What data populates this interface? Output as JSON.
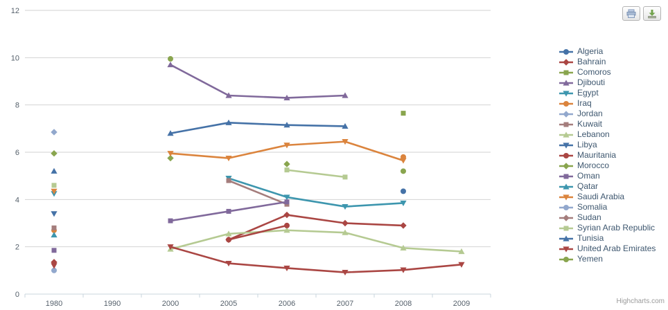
{
  "credits": "Highcharts.com",
  "toolbar": {
    "print_icon": "print-chart",
    "export_icon": "download-chart"
  },
  "chart_data": {
    "type": "line",
    "title": "",
    "xlabel": "",
    "ylabel": "",
    "categories": [
      "1980",
      "1990",
      "2000",
      "2005",
      "2006",
      "2007",
      "2008",
      "2009"
    ],
    "yaxis": {
      "min": 0,
      "max": 12,
      "tick_interval": 2,
      "ticks": [
        0,
        2,
        4,
        6,
        8,
        10,
        12
      ]
    },
    "grid": true,
    "legend_position": "right",
    "series": [
      {
        "name": "Algeria",
        "color": "#4572A7",
        "marker": "circle",
        "points": [
          [
            "2008",
            4.35
          ]
        ]
      },
      {
        "name": "Bahrain",
        "color": "#AA4643",
        "marker": "diamond",
        "points": [
          [
            "1980",
            1.35
          ],
          [
            "2005",
            2.3
          ],
          [
            "2006",
            3.35
          ],
          [
            "2007",
            3.0
          ],
          [
            "2008",
            2.9
          ]
        ]
      },
      {
        "name": "Comoros",
        "color": "#89A54E",
        "marker": "square",
        "points": [
          [
            "2008",
            7.65
          ]
        ]
      },
      {
        "name": "Djibouti",
        "color": "#80699B",
        "marker": "triangle",
        "points": [
          [
            "2000",
            9.7
          ],
          [
            "2005",
            8.4
          ],
          [
            "2006",
            8.3
          ],
          [
            "2007",
            8.4
          ]
        ]
      },
      {
        "name": "Egypt",
        "color": "#3D96AE",
        "marker": "triangle-down",
        "points": [
          [
            "1980",
            4.25
          ],
          [
            "2005",
            4.9
          ],
          [
            "2006",
            4.1
          ],
          [
            "2007",
            3.7
          ],
          [
            "2008",
            3.85
          ]
        ]
      },
      {
        "name": "Iraq",
        "color": "#DB843D",
        "marker": "circle",
        "points": [
          [
            "1980",
            2.7
          ],
          [
            "2008",
            5.8
          ]
        ]
      },
      {
        "name": "Jordan",
        "color": "#92A8CD",
        "marker": "diamond",
        "points": [
          [
            "1980",
            6.85
          ]
        ]
      },
      {
        "name": "Kuwait",
        "color": "#A47D7C",
        "marker": "square",
        "points": [
          [
            "1980",
            2.8
          ],
          [
            "2005",
            4.8
          ],
          [
            "2006",
            3.8
          ]
        ]
      },
      {
        "name": "Lebanon",
        "color": "#B5CA92",
        "marker": "triangle",
        "points": [
          [
            "2000",
            1.9
          ],
          [
            "2005",
            2.55
          ],
          [
            "2006",
            2.7
          ],
          [
            "2007",
            2.6
          ],
          [
            "2008",
            1.95
          ],
          [
            "2009",
            1.8
          ]
        ]
      },
      {
        "name": "Libya",
        "color": "#4572A7",
        "marker": "triangle-down",
        "points": [
          [
            "1980",
            3.4
          ]
        ]
      },
      {
        "name": "Mauritania",
        "color": "#AA4643",
        "marker": "circle",
        "points": [
          [
            "2005",
            2.3
          ],
          [
            "2006",
            2.9
          ]
        ]
      },
      {
        "name": "Morocco",
        "color": "#89A54E",
        "marker": "diamond",
        "points": [
          [
            "1980",
            5.95
          ],
          [
            "2000",
            5.75
          ],
          [
            "2006",
            5.5
          ]
        ]
      },
      {
        "name": "Oman",
        "color": "#80699B",
        "marker": "square",
        "points": [
          [
            "1980",
            1.85
          ],
          [
            "2000",
            3.1
          ],
          [
            "2005",
            3.5
          ],
          [
            "2006",
            3.9
          ]
        ]
      },
      {
        "name": "Qatar",
        "color": "#3D96AE",
        "marker": "triangle",
        "points": [
          [
            "1980",
            2.5
          ]
        ]
      },
      {
        "name": "Saudi Arabia",
        "color": "#DB843D",
        "marker": "triangle-down",
        "points": [
          [
            "1980",
            4.35
          ],
          [
            "2000",
            5.95
          ],
          [
            "2005",
            5.75
          ],
          [
            "2006",
            6.3
          ],
          [
            "2007",
            6.45
          ],
          [
            "2008",
            5.65
          ]
        ]
      },
      {
        "name": "Somalia",
        "color": "#92A8CD",
        "marker": "circle",
        "points": [
          [
            "1980",
            1.0
          ]
        ]
      },
      {
        "name": "Sudan",
        "color": "#A47D7C",
        "marker": "diamond",
        "points": []
      },
      {
        "name": "Syrian Arab Republic",
        "color": "#B5CA92",
        "marker": "square",
        "points": [
          [
            "1980",
            4.6
          ],
          [
            "2006",
            5.25
          ],
          [
            "2007",
            4.95
          ]
        ]
      },
      {
        "name": "Tunisia",
        "color": "#4572A7",
        "marker": "triangle",
        "points": [
          [
            "1980",
            5.2
          ],
          [
            "2000",
            6.8
          ],
          [
            "2005",
            7.25
          ],
          [
            "2006",
            7.15
          ],
          [
            "2007",
            7.1
          ]
        ]
      },
      {
        "name": "United Arab Emirates",
        "color": "#AA4643",
        "marker": "triangle-down",
        "points": [
          [
            "1980",
            1.2
          ],
          [
            "2000",
            2.0
          ],
          [
            "2005",
            1.3
          ],
          [
            "2006",
            1.1
          ],
          [
            "2007",
            0.92
          ],
          [
            "2008",
            1.02
          ],
          [
            "2009",
            1.25
          ]
        ]
      },
      {
        "name": "Yemen",
        "color": "#89A54E",
        "marker": "circle",
        "points": [
          [
            "2000",
            9.95
          ],
          [
            "2008",
            5.2
          ]
        ]
      }
    ]
  }
}
